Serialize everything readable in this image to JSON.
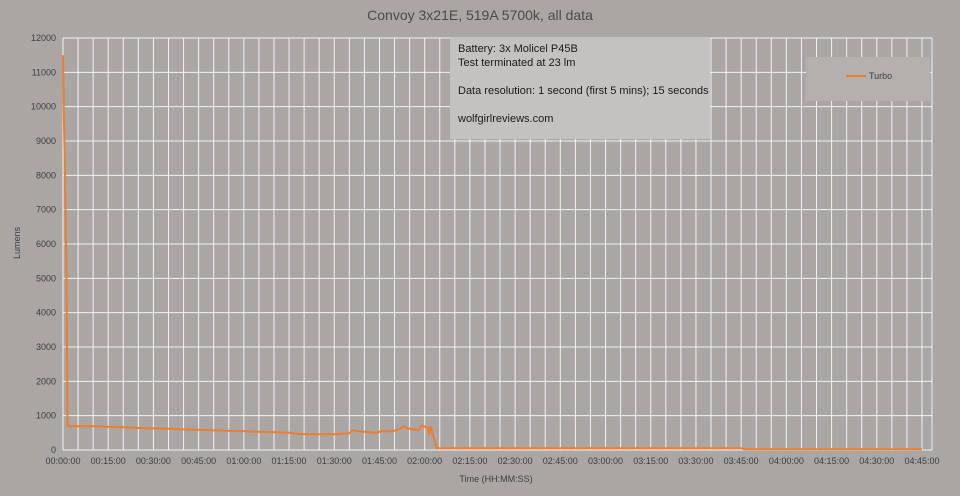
{
  "chart_data": {
    "type": "line",
    "title": "Convoy 3x21E, 519A 5700k, all data",
    "xlabel": "Time (HH:MM:SS)",
    "ylabel": "Lumens",
    "xlim": [
      0,
      270
    ],
    "ylim": [
      0,
      12000
    ],
    "x_ticks": [
      "00:00:00",
      "00:15:00",
      "00:30:00",
      "00:45:00",
      "01:00:00",
      "01:15:00",
      "01:30:00",
      "01:45:00",
      "02:00:00",
      "02:15:00",
      "02:30:00",
      "02:45:00",
      "03:00:00",
      "03:15:00",
      "03:30:00",
      "03:45:00",
      "04:00:00",
      "04:15:00",
      "04:30:00",
      "04:45:00"
    ],
    "y_ticks": [
      "0",
      "1000",
      "2000",
      "3000",
      "4000",
      "5000",
      "6000",
      "7000",
      "8000",
      "9000",
      "10000",
      "11000",
      "12000"
    ],
    "grid": true,
    "legend_position": "top-right",
    "annotation_lines": [
      "Battery: 3x Molicel P45B",
      "Test terminated at 23 lm",
      "",
      "Data resolution: 1 second (first 5 mins); 15 seconds",
      "",
      "wolfgirlreviews.com"
    ],
    "series": [
      {
        "name": "Turbo",
        "color": "#ee7d30",
        "x": [
          0,
          0.3,
          0.6,
          0.9,
          1.2,
          1.5,
          2.0,
          2.5,
          3.0,
          5,
          10,
          15,
          20,
          25,
          30,
          35,
          40,
          45,
          50,
          55,
          60,
          65,
          70,
          75,
          78,
          80,
          85,
          90,
          95,
          96,
          100,
          104,
          106,
          108,
          110,
          112,
          113,
          114,
          116,
          118,
          119,
          120,
          121,
          121.5,
          122,
          124,
          130,
          150,
          180,
          210,
          225,
          226,
          230,
          240,
          255,
          270,
          285
        ],
        "y": [
          11500,
          9600,
          8300,
          6700,
          4800,
          700,
          700,
          690,
          690,
          690,
          690,
          680,
          660,
          640,
          630,
          620,
          600,
          590,
          570,
          560,
          550,
          530,
          520,
          500,
          470,
          460,
          460,
          460,
          490,
          570,
          530,
          500,
          560,
          540,
          560,
          620,
          700,
          640,
          600,
          580,
          720,
          680,
          660,
          450,
          680,
          50,
          50,
          50,
          50,
          50,
          50,
          23,
          23,
          23,
          23,
          23,
          23
        ]
      }
    ]
  }
}
